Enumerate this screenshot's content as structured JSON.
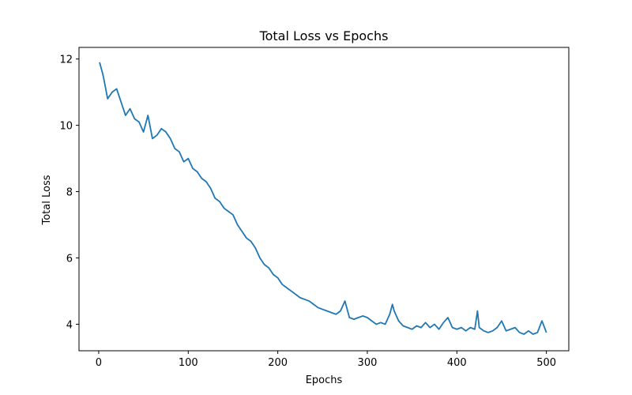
{
  "chart_data": {
    "type": "line",
    "title": "Total Loss vs Epochs",
    "xlabel": "Epochs",
    "ylabel": "Total Loss",
    "xlim": [
      -22,
      525
    ],
    "ylim": [
      3.2,
      12.35
    ],
    "xticks": [
      0,
      100,
      200,
      300,
      400,
      500
    ],
    "yticks": [
      4,
      6,
      8,
      10,
      12
    ],
    "grid": false,
    "series": [
      {
        "color": "#1f77b4",
        "x": [
          1,
          5,
          10,
          15,
          20,
          25,
          30,
          35,
          40,
          45,
          50,
          55,
          60,
          65,
          70,
          75,
          80,
          85,
          90,
          95,
          100,
          105,
          110,
          115,
          120,
          125,
          130,
          135,
          140,
          145,
          150,
          155,
          160,
          165,
          170,
          175,
          180,
          185,
          190,
          195,
          200,
          205,
          210,
          215,
          220,
          225,
          230,
          235,
          240,
          245,
          250,
          255,
          260,
          265,
          270,
          275,
          280,
          285,
          290,
          295,
          300,
          305,
          310,
          315,
          320,
          325,
          328,
          330,
          335,
          340,
          345,
          350,
          355,
          360,
          365,
          370,
          375,
          380,
          385,
          390,
          395,
          400,
          405,
          410,
          415,
          420,
          423,
          425,
          430,
          435,
          440,
          445,
          450,
          455,
          460,
          465,
          470,
          475,
          480,
          485,
          490,
          495,
          500
        ],
        "y": [
          11.9,
          11.5,
          10.8,
          11.0,
          11.1,
          10.7,
          10.3,
          10.5,
          10.2,
          10.1,
          9.8,
          10.3,
          9.6,
          9.7,
          9.9,
          9.8,
          9.6,
          9.3,
          9.2,
          8.9,
          9.0,
          8.7,
          8.6,
          8.4,
          8.3,
          8.1,
          7.8,
          7.7,
          7.5,
          7.4,
          7.3,
          7.0,
          6.8,
          6.6,
          6.5,
          6.3,
          6.0,
          5.8,
          5.7,
          5.5,
          5.4,
          5.2,
          5.1,
          5.0,
          4.9,
          4.8,
          4.75,
          4.7,
          4.6,
          4.5,
          4.45,
          4.4,
          4.35,
          4.3,
          4.4,
          4.7,
          4.2,
          4.15,
          4.2,
          4.25,
          4.2,
          4.1,
          4.0,
          4.05,
          4.0,
          4.3,
          4.6,
          4.4,
          4.1,
          3.95,
          3.9,
          3.85,
          3.95,
          3.9,
          4.05,
          3.9,
          4.0,
          3.85,
          4.05,
          4.2,
          3.9,
          3.85,
          3.9,
          3.8,
          3.9,
          3.85,
          4.4,
          3.9,
          3.8,
          3.75,
          3.8,
          3.9,
          4.1,
          3.8,
          3.85,
          3.9,
          3.75,
          3.7,
          3.8,
          3.7,
          3.75,
          4.1,
          3.75
        ]
      }
    ]
  }
}
